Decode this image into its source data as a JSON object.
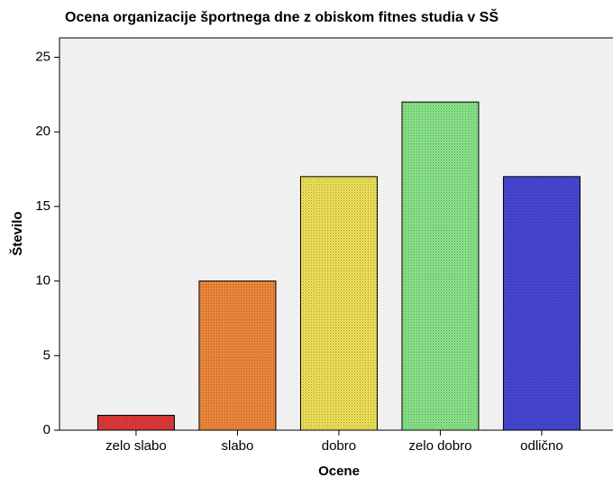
{
  "chart_data": {
    "type": "bar",
    "title": "Ocena organizacije športnega dne z obiskom fitnes studia v SŠ",
    "x_label": "Ocene",
    "y_label": "Število",
    "categories": [
      "zelo slabo",
      "slabo",
      "dobro",
      "zelo dobro",
      "odlično"
    ],
    "values": [
      1,
      10,
      17,
      22,
      17
    ],
    "colors": [
      "#e23a3a",
      "#f28a3c",
      "#f2e45a",
      "#8ae68a",
      "#4848d8"
    ],
    "ylim": [
      0,
      26.3
    ],
    "yticks": [
      0,
      5,
      10,
      15,
      20,
      25
    ],
    "grid": false
  }
}
